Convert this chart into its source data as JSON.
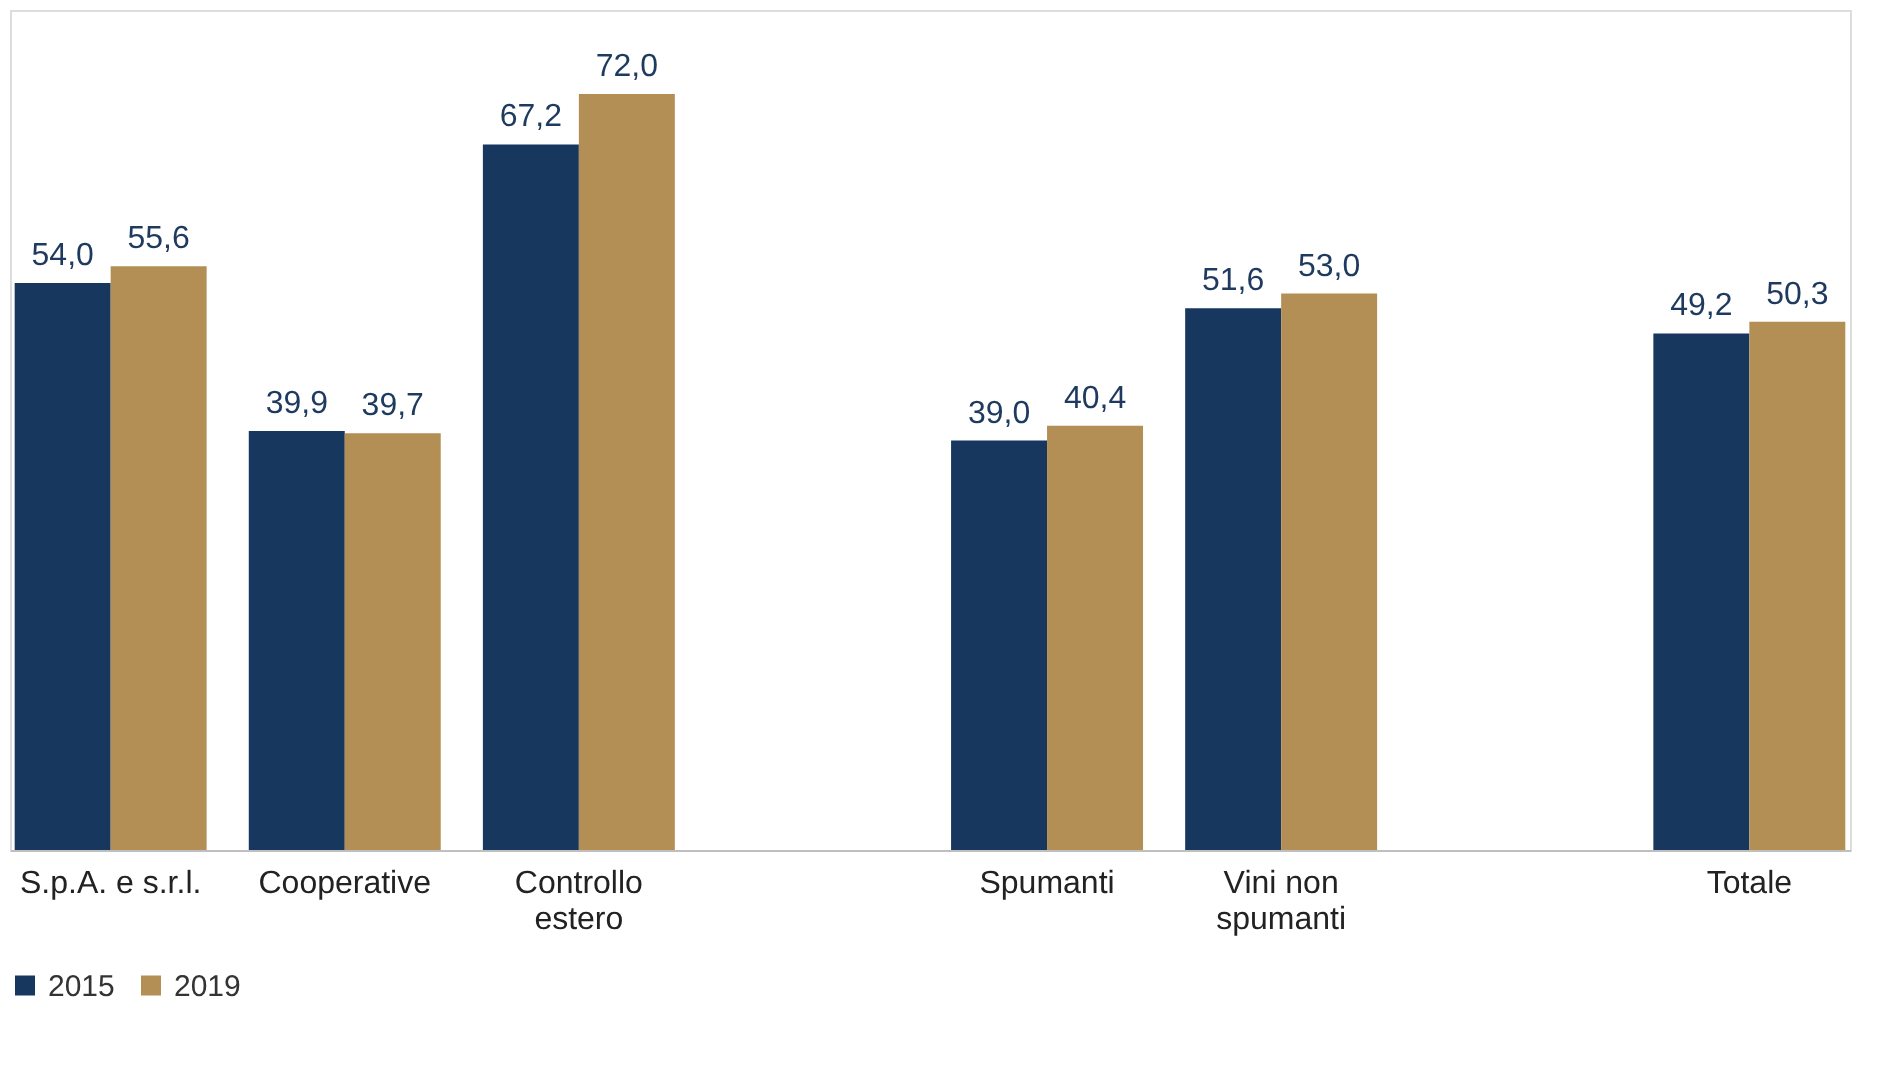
{
  "chart_data": {
    "type": "bar",
    "categories": [
      "S.p.A. e s.r.l.",
      "Cooperative",
      "Controllo estero",
      null,
      "Spumanti",
      "Vini non spumanti",
      null,
      "Totale"
    ],
    "series": [
      {
        "name": "2015",
        "color": "#17375e",
        "values": [
          54.0,
          39.9,
          67.2,
          null,
          39.0,
          51.6,
          null,
          49.2
        ],
        "value_labels": [
          "54,0",
          "39,9",
          "67,2",
          null,
          "39,0",
          "51,6",
          null,
          "49,2"
        ]
      },
      {
        "name": "2019",
        "color": "#b38f56",
        "values": [
          55.6,
          39.7,
          72.0,
          null,
          40.4,
          53.0,
          null,
          50.3
        ],
        "value_labels": [
          "55,6",
          "39,7",
          "72,0",
          null,
          "40,4",
          "53,0",
          null,
          "50,3"
        ]
      }
    ],
    "legend": "bottom",
    "grid": false
  }
}
